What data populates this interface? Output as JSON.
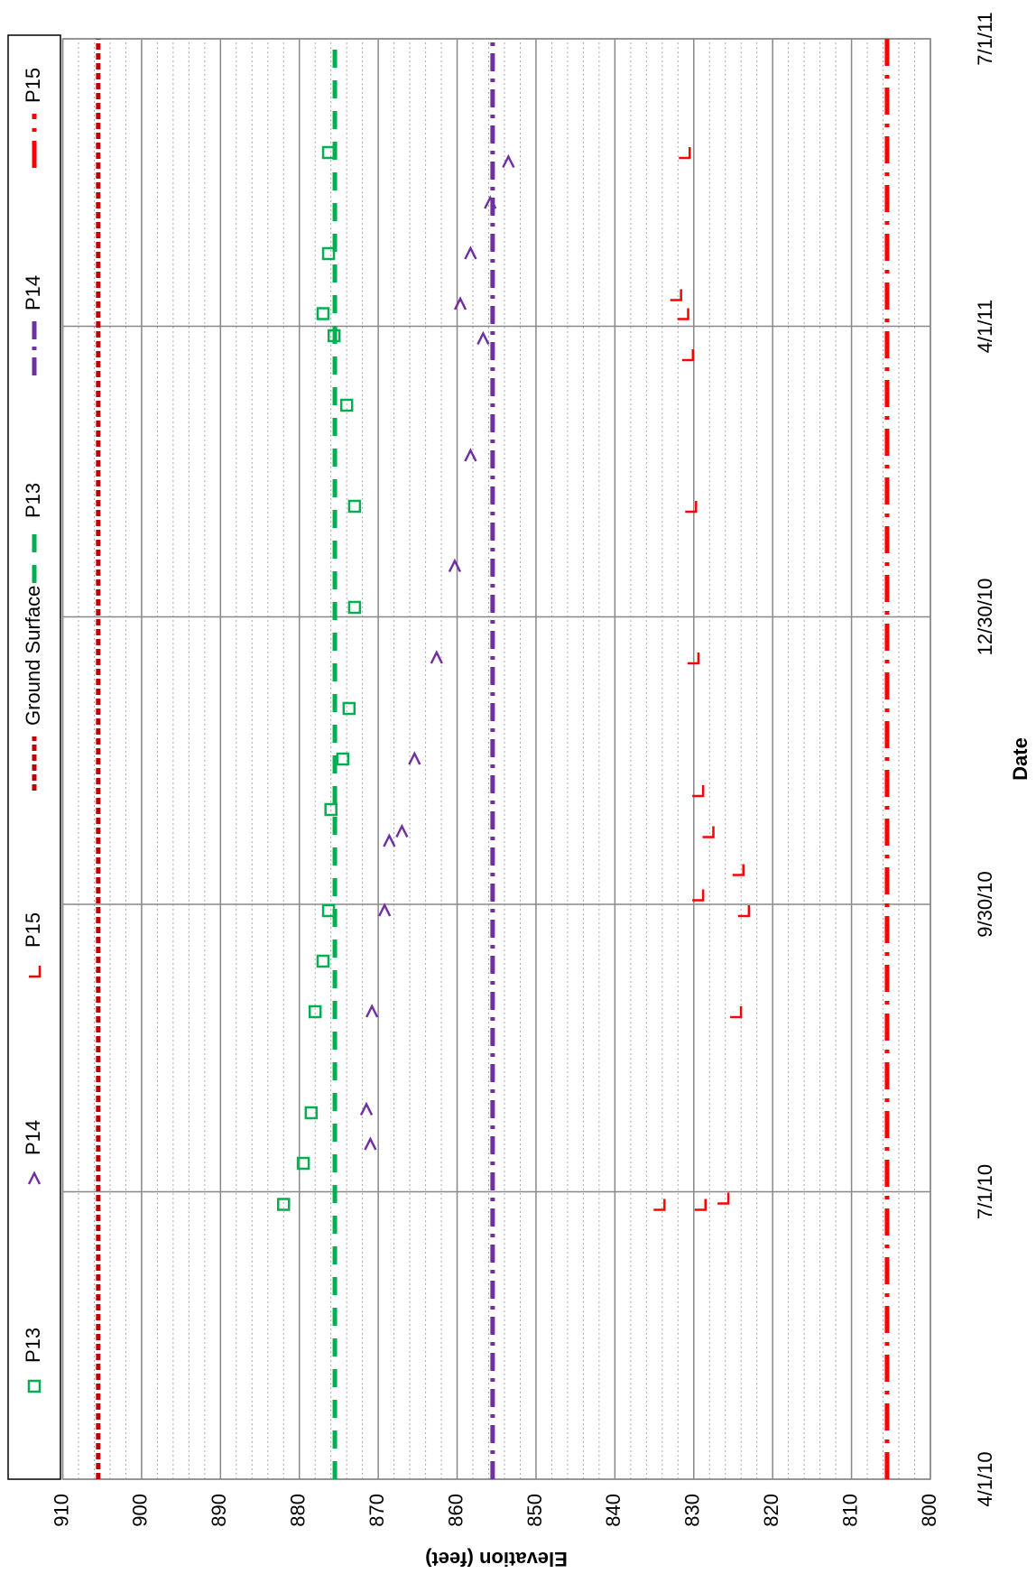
{
  "chart_data": {
    "type": "scatter",
    "xlabel": "Date",
    "ylabel": "Elevation (feet)",
    "xlim": [
      "4/1/10",
      "7/1/11"
    ],
    "xticks": [
      "4/1/10",
      "7/1/10",
      "9/30/10",
      "12/30/10",
      "4/1/11",
      "7/1/11"
    ],
    "ylim": [
      800,
      910
    ],
    "yticks": [
      800,
      810,
      820,
      830,
      840,
      850,
      860,
      870,
      880,
      890,
      900,
      910
    ],
    "grid": true,
    "minor_grid": true,
    "legend": "top",
    "series": [
      {
        "name": "P13",
        "color": "#00b050",
        "mode": "markers",
        "marker": "square",
        "x": [
          "6/27/10",
          "7/10/10",
          "7/26/10",
          "8/27/10",
          "9/12/10",
          "9/28/10",
          "10/30/10",
          "11/15/10",
          "12/1/10",
          "1/2/11",
          "2/3/11",
          "3/7/11",
          "3/29/11",
          "4/5/11",
          "4/24/11",
          "5/26/11"
        ],
        "values": [
          882,
          879.5,
          878.5,
          878,
          877,
          876.3,
          876,
          874.5,
          873.7,
          873,
          873,
          874,
          875.6,
          877,
          876.3,
          876.3
        ]
      },
      {
        "name": "P14",
        "color": "#7030a0",
        "mode": "markers",
        "marker": "chevron",
        "x": [
          "7/16/10",
          "7/27/10",
          "8/27/10",
          "9/28/10",
          "10/20/10",
          "10/23/10",
          "11/15/10",
          "12/17/10",
          "1/15/11",
          "2/19/11",
          "3/28/11",
          "4/8/11",
          "4/24/11",
          "5/10/11",
          "5/23/11"
        ],
        "values": [
          871,
          871.5,
          870.8,
          869.2,
          868.6,
          867,
          865.4,
          862.6,
          860.3,
          858.3,
          856.7,
          859.6,
          858.3,
          855.8,
          853.5
        ]
      },
      {
        "name": "P15",
        "color": "#ff0000",
        "mode": "markers",
        "marker": "corner",
        "x": [
          "6/27/10",
          "6/27/10",
          "6/29/10",
          "8/27/10",
          "9/28/10",
          "10/3/10",
          "10/11/10",
          "10/23/10",
          "11/5/10",
          "12/17/10",
          "2/3/11",
          "3/23/11",
          "4/5/11",
          "4/11/11",
          "5/26/11"
        ],
        "values": [
          834.4,
          829.2,
          826.3,
          824.7,
          823.7,
          829.5,
          824.4,
          828.2,
          829.5,
          830.1,
          830.4,
          830.8,
          831.4,
          832.3,
          831.2
        ]
      },
      {
        "name": "Ground Surface",
        "color": "#c00000",
        "mode": "line",
        "dash": "dot",
        "x": [
          "4/1/10",
          "7/1/11"
        ],
        "values": [
          905.5,
          905.5
        ]
      },
      {
        "name": "P13",
        "color": "#00b050",
        "mode": "line",
        "dash": "dash",
        "x": [
          "4/1/10",
          "7/1/11"
        ],
        "values": [
          875.5,
          875.5
        ]
      },
      {
        "name": "P14",
        "color": "#7030a0",
        "mode": "line",
        "dash": "dashdot",
        "x": [
          "4/1/10",
          "7/1/11"
        ],
        "values": [
          855.5,
          855.5
        ]
      },
      {
        "name": "P15",
        "color": "#ff0000",
        "mode": "line",
        "dash": "longdashdot",
        "x": [
          "4/1/10",
          "7/1/11"
        ],
        "values": [
          805.5,
          805.5
        ]
      }
    ]
  }
}
